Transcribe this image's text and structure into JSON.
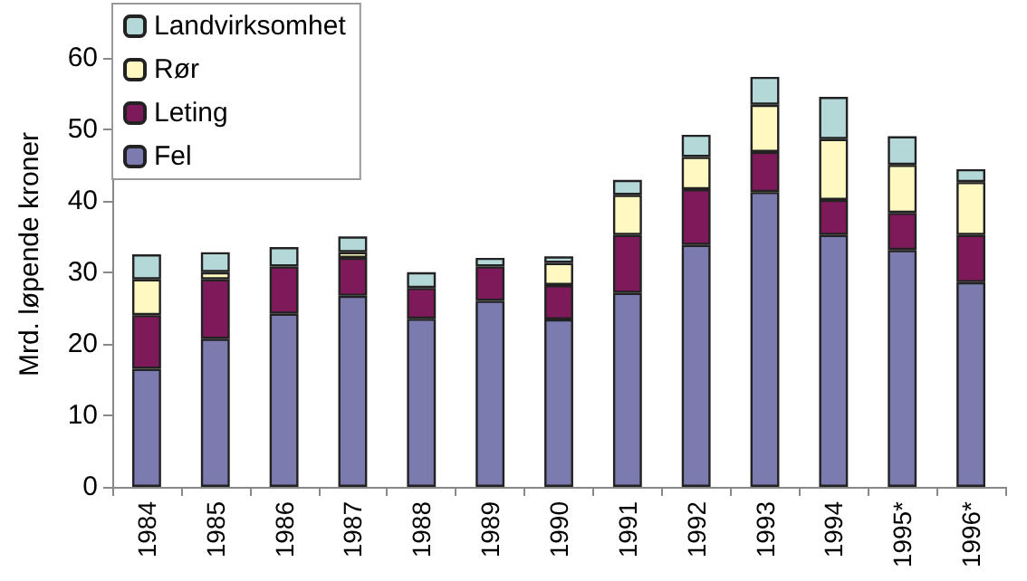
{
  "chart_data": {
    "type": "bar",
    "stacked": true,
    "ylabel": "Mrd. løpende kroner",
    "categories": [
      "1984",
      "1985",
      "1986",
      "1987",
      "1988",
      "1989",
      "1990",
      "1991",
      "1992",
      "1993",
      "1994",
      "1995*",
      "1996*"
    ],
    "series": [
      {
        "name": "Fel",
        "color": "#7b7bb0",
        "values": [
          16.5,
          20.7,
          24.2,
          26.7,
          23.5,
          26,
          23.4,
          27.1,
          33.8,
          41.2,
          35.2,
          33.1,
          28.6
        ]
      },
      {
        "name": "Leting",
        "color": "#7f1a5a",
        "values": [
          7.5,
          8.3,
          6.6,
          5.3,
          4.3,
          4.8,
          4.8,
          8.1,
          7.8,
          5.6,
          4.9,
          5.2,
          6.6
        ]
      },
      {
        "name": "Rør",
        "color": "#fff8c0",
        "values": [
          5,
          1,
          null,
          0.8,
          null,
          null,
          3.1,
          5.6,
          4.5,
          6.6,
          8.5,
          6.7,
          7.4
        ]
      },
      {
        "name": "Landvirksomhet",
        "color": "#b4d8d8",
        "values": [
          3.5,
          2.8,
          2.7,
          2.2,
          2.2,
          1.2,
          0.9,
          2.1,
          3.1,
          3.9,
          5.9,
          4,
          1.8
        ]
      }
    ],
    "ylim": [
      0,
      65
    ],
    "yticks": [
      0,
      10,
      20,
      30,
      40,
      50,
      60
    ],
    "grid": false,
    "legend": "top left"
  }
}
